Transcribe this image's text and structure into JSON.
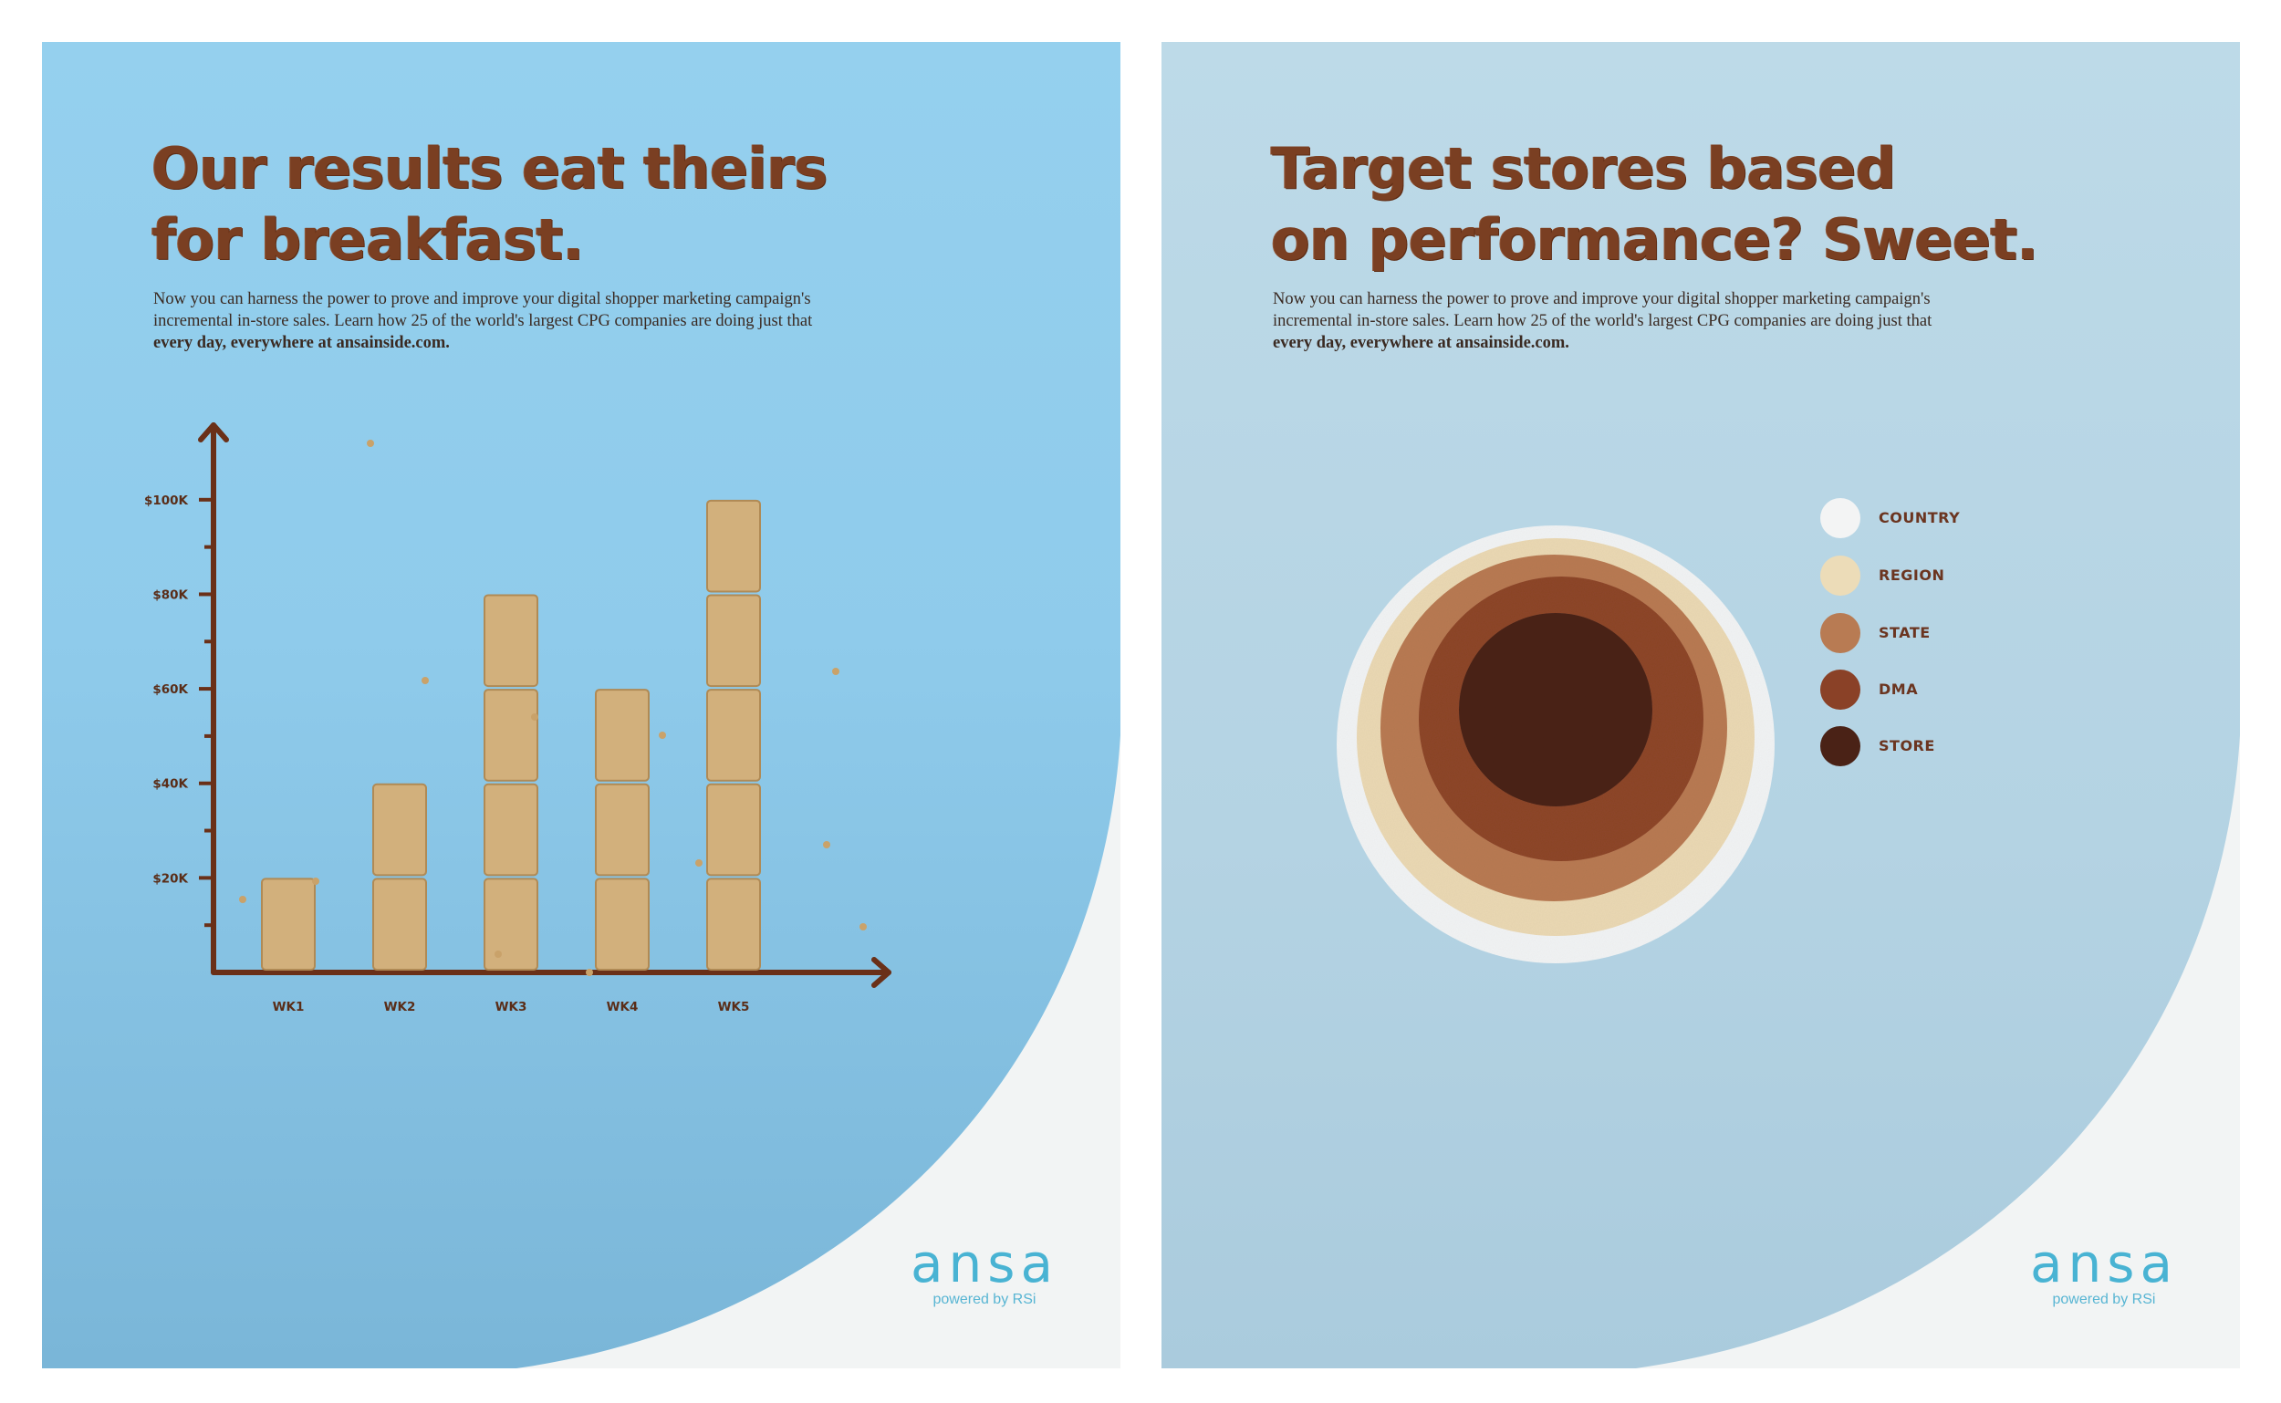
{
  "ads": [
    {
      "headline": [
        "Our results eat theirs",
        "for breakfast."
      ],
      "body": [
        "Now you can harness the power to prove and improve your digital shopper marketing campaign's",
        "incremental in-store sales. Learn how 25 of the world's largest CPG companies are doing just that"
      ],
      "body_bold": "every day, everywhere at ansainside.com.",
      "logo": {
        "word": "ansa",
        "tagline": "powered by RSi"
      }
    },
    {
      "headline": [
        "Target stores based",
        "on performance? Sweet."
      ],
      "body": [
        "Now you can harness the power to prove and improve your digital shopper marketing campaign's",
        "incremental in-store sales. Learn how 25 of the world's largest CPG companies are doing just that"
      ],
      "body_bold": "every day, everywhere at ansainside.com.",
      "logo": {
        "word": "ansa",
        "tagline": "powered by RSi"
      },
      "legend": [
        {
          "label": "COUNTRY",
          "color": "#f3f4f4"
        },
        {
          "label": "REGION",
          "color": "#ecdcb8"
        },
        {
          "label": "STATE",
          "color": "#b87b53"
        },
        {
          "label": "DMA",
          "color": "#8a4127"
        },
        {
          "label": "STORE",
          "color": "#4a2216"
        }
      ]
    }
  ],
  "chart_data": {
    "type": "bar",
    "categories": [
      "WK1",
      "WK2",
      "WK3",
      "WK4",
      "WK5"
    ],
    "values": [
      20000,
      40000,
      80000,
      60000,
      100000
    ],
    "ytick_labels": [
      "$20K",
      "$40K",
      "$60K",
      "$80K",
      "$100K"
    ],
    "ytick_values": [
      20000,
      40000,
      60000,
      80000,
      100000
    ],
    "ylim": [
      0,
      110000
    ],
    "colors": {
      "axis": "#6a3018",
      "bar": "#d2b07c",
      "bar_edge": "#b08a55"
    }
  }
}
